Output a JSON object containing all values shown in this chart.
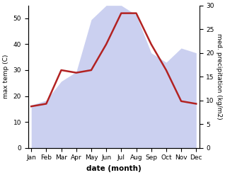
{
  "months": [
    "Jan",
    "Feb",
    "Mar",
    "Apr",
    "May",
    "Jun",
    "Jul",
    "Aug",
    "Sep",
    "Oct",
    "Nov",
    "Dec"
  ],
  "temp": [
    16,
    17,
    30,
    29,
    30,
    40,
    52,
    52,
    40,
    30,
    18,
    17
  ],
  "precip": [
    9,
    10,
    14,
    16,
    27,
    30,
    30,
    28,
    20,
    18,
    21,
    20
  ],
  "temp_color": "#b22222",
  "precip_color": "#b0b8e8",
  "precip_alpha": 0.65,
  "xlabel": "date (month)",
  "ylabel_left": "max temp (C)",
  "ylabel_right": "med. precipitation (kg/m2)",
  "ylim_left": [
    0,
    55
  ],
  "ylim_right": [
    0,
    30
  ],
  "yticks_left": [
    0,
    10,
    20,
    30,
    40,
    50
  ],
  "yticks_right": [
    0,
    5,
    10,
    15,
    20,
    25,
    30
  ],
  "background_color": "#ffffff",
  "line_width": 1.8
}
